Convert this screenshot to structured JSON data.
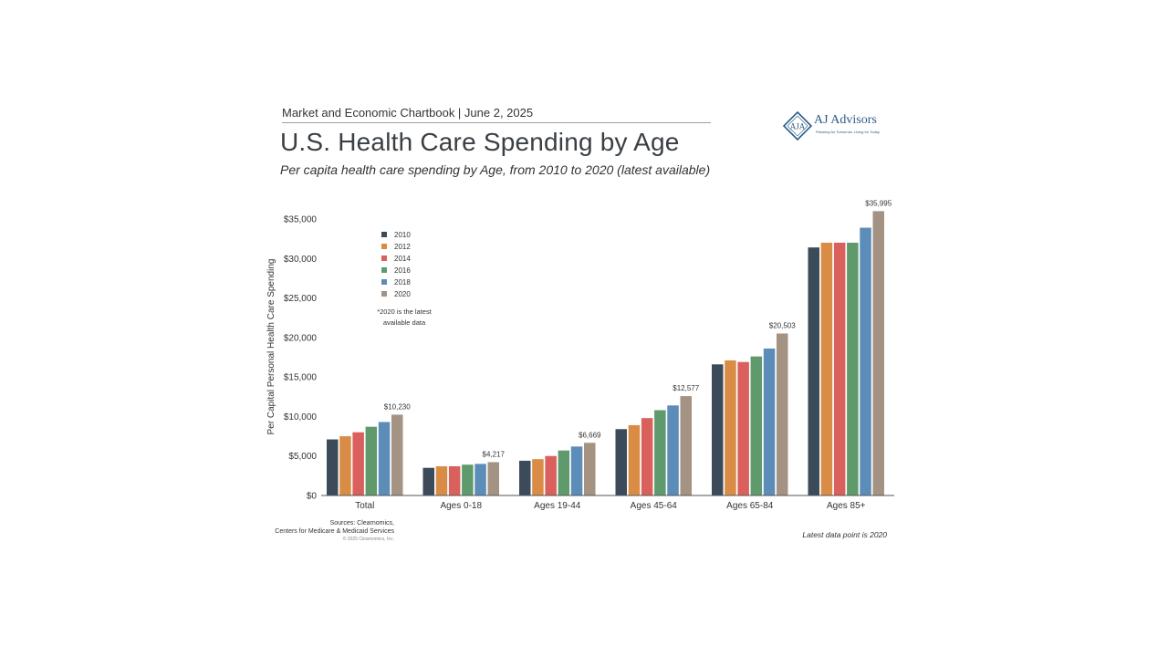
{
  "header": {
    "chartbook": "Market and Economic Chartbook | June 2, 2025",
    "title": "U.S. Health Care Spending by Age",
    "subtitle": "Per capita health care spending by Age, from 2010 to 2020 (latest available)"
  },
  "logo": {
    "name": "AJ Advisors",
    "tagline": "Planning for Tomorrow. Living for Today.",
    "monogram": "AJA"
  },
  "colors": {
    "2010": "#3b4b5a",
    "2012": "#d98c45",
    "2014": "#d9605c",
    "2016": "#5f9a6c",
    "2018": "#5b8db8",
    "2020": "#a49283"
  },
  "footer": {
    "sources_line1": "Sources: Clearnomics,",
    "sources_line2": "Centers for Medicare & Medicaid Services",
    "copyright": "© 2025 Clearnomics, Inc.",
    "latest": "Latest data point is 2020"
  },
  "chart_data": {
    "type": "bar",
    "ylabel": "Per Capital Personal Health Care Spending",
    "ylim": [
      0,
      35000
    ],
    "yticks": [
      "$0",
      "$5,000",
      "$10,000",
      "$15,000",
      "$20,000",
      "$25,000",
      "$30,000",
      "$35,000"
    ],
    "categories": [
      "Total",
      "Ages 0-18",
      "Ages 19-44",
      "Ages 45-64",
      "Ages 65-84",
      "Ages 85+"
    ],
    "legend_placement": "top-left",
    "note": "*2020 is the latest available data",
    "series": [
      {
        "name": "2010",
        "values": [
          7100,
          3500,
          4400,
          8400,
          16600,
          31400
        ]
      },
      {
        "name": "2012",
        "values": [
          7500,
          3700,
          4600,
          8900,
          17100,
          32000
        ]
      },
      {
        "name": "2014",
        "values": [
          8000,
          3700,
          5000,
          9800,
          16900,
          32000
        ]
      },
      {
        "name": "2016",
        "values": [
          8700,
          3900,
          5700,
          10800,
          17600,
          32000
        ]
      },
      {
        "name": "2018",
        "values": [
          9300,
          4000,
          6200,
          11400,
          18600,
          33900
        ]
      },
      {
        "name": "2020",
        "values": [
          10230,
          4217,
          6669,
          12577,
          20503,
          35995
        ]
      }
    ],
    "data_labels": [
      "$10,230",
      "$4,217",
      "$6,669",
      "$12,577",
      "$20,503",
      "$35,995"
    ]
  }
}
